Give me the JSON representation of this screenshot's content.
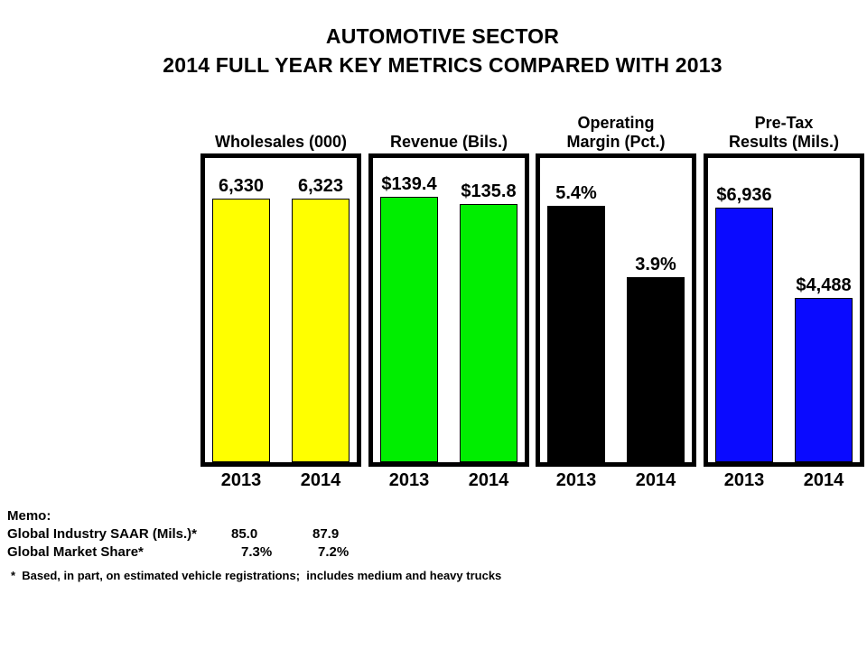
{
  "title": {
    "line1": "AUTOMOTIVE SECTOR",
    "line2": "2014 FULL YEAR KEY METRICS COMPARED WITH 2013"
  },
  "chart_data": {
    "type": "bar",
    "categories": [
      "2013",
      "2014"
    ],
    "grid": false,
    "legend": false,
    "panels": [
      {
        "header_lines": [
          "Wholesales (000)"
        ],
        "series_name": "Wholesales (000)",
        "values": [
          6330,
          6323
        ],
        "value_labels": [
          "6,330",
          "6,323"
        ],
        "bar_color": "#ffff00",
        "ylim": [
          0,
          7300
        ]
      },
      {
        "header_lines": [
          "Revenue (Bils.)"
        ],
        "series_name": "Revenue (Bils.)",
        "values": [
          139.4,
          135.8
        ],
        "value_labels": [
          "$139.4",
          "$135.8"
        ],
        "bar_color": "#00ee00",
        "ylim": [
          0,
          160
        ]
      },
      {
        "header_lines": [
          "Operating",
          "Margin (Pct.)"
        ],
        "series_name": "Operating Margin (Pct.)",
        "values": [
          5.4,
          3.9
        ],
        "value_labels": [
          "5.4%",
          "3.9%"
        ],
        "bar_color": "#000000",
        "ylim": [
          0,
          6.4
        ]
      },
      {
        "header_lines": [
          "Pre-Tax",
          "Results (Mils.)"
        ],
        "series_name": "Pre-Tax Results (Mils.)",
        "values": [
          6936,
          4488
        ],
        "value_labels": [
          "$6,936",
          "$4,488"
        ],
        "bar_color": "#0a0aff",
        "ylim": [
          0,
          8300
        ]
      }
    ],
    "colors": {
      "wholesales": "#ffff00",
      "revenue": "#00ee00",
      "operating_margin": "#000000",
      "pretax_results": "#0a0aff",
      "border": "#000000",
      "text": "#000000",
      "background": "#ffffff"
    }
  },
  "memo": {
    "heading": "Memo:",
    "rows": [
      {
        "label": "Global Industry SAAR (Mils.)*",
        "v2013": "85.0",
        "v2014": "87.9"
      },
      {
        "label": "Global Market Share*",
        "v2013": "7.3%",
        "v2014": "7.2%"
      }
    ],
    "footnote": "*  Based, in part, on estimated vehicle registrations;  includes medium and heavy trucks"
  }
}
